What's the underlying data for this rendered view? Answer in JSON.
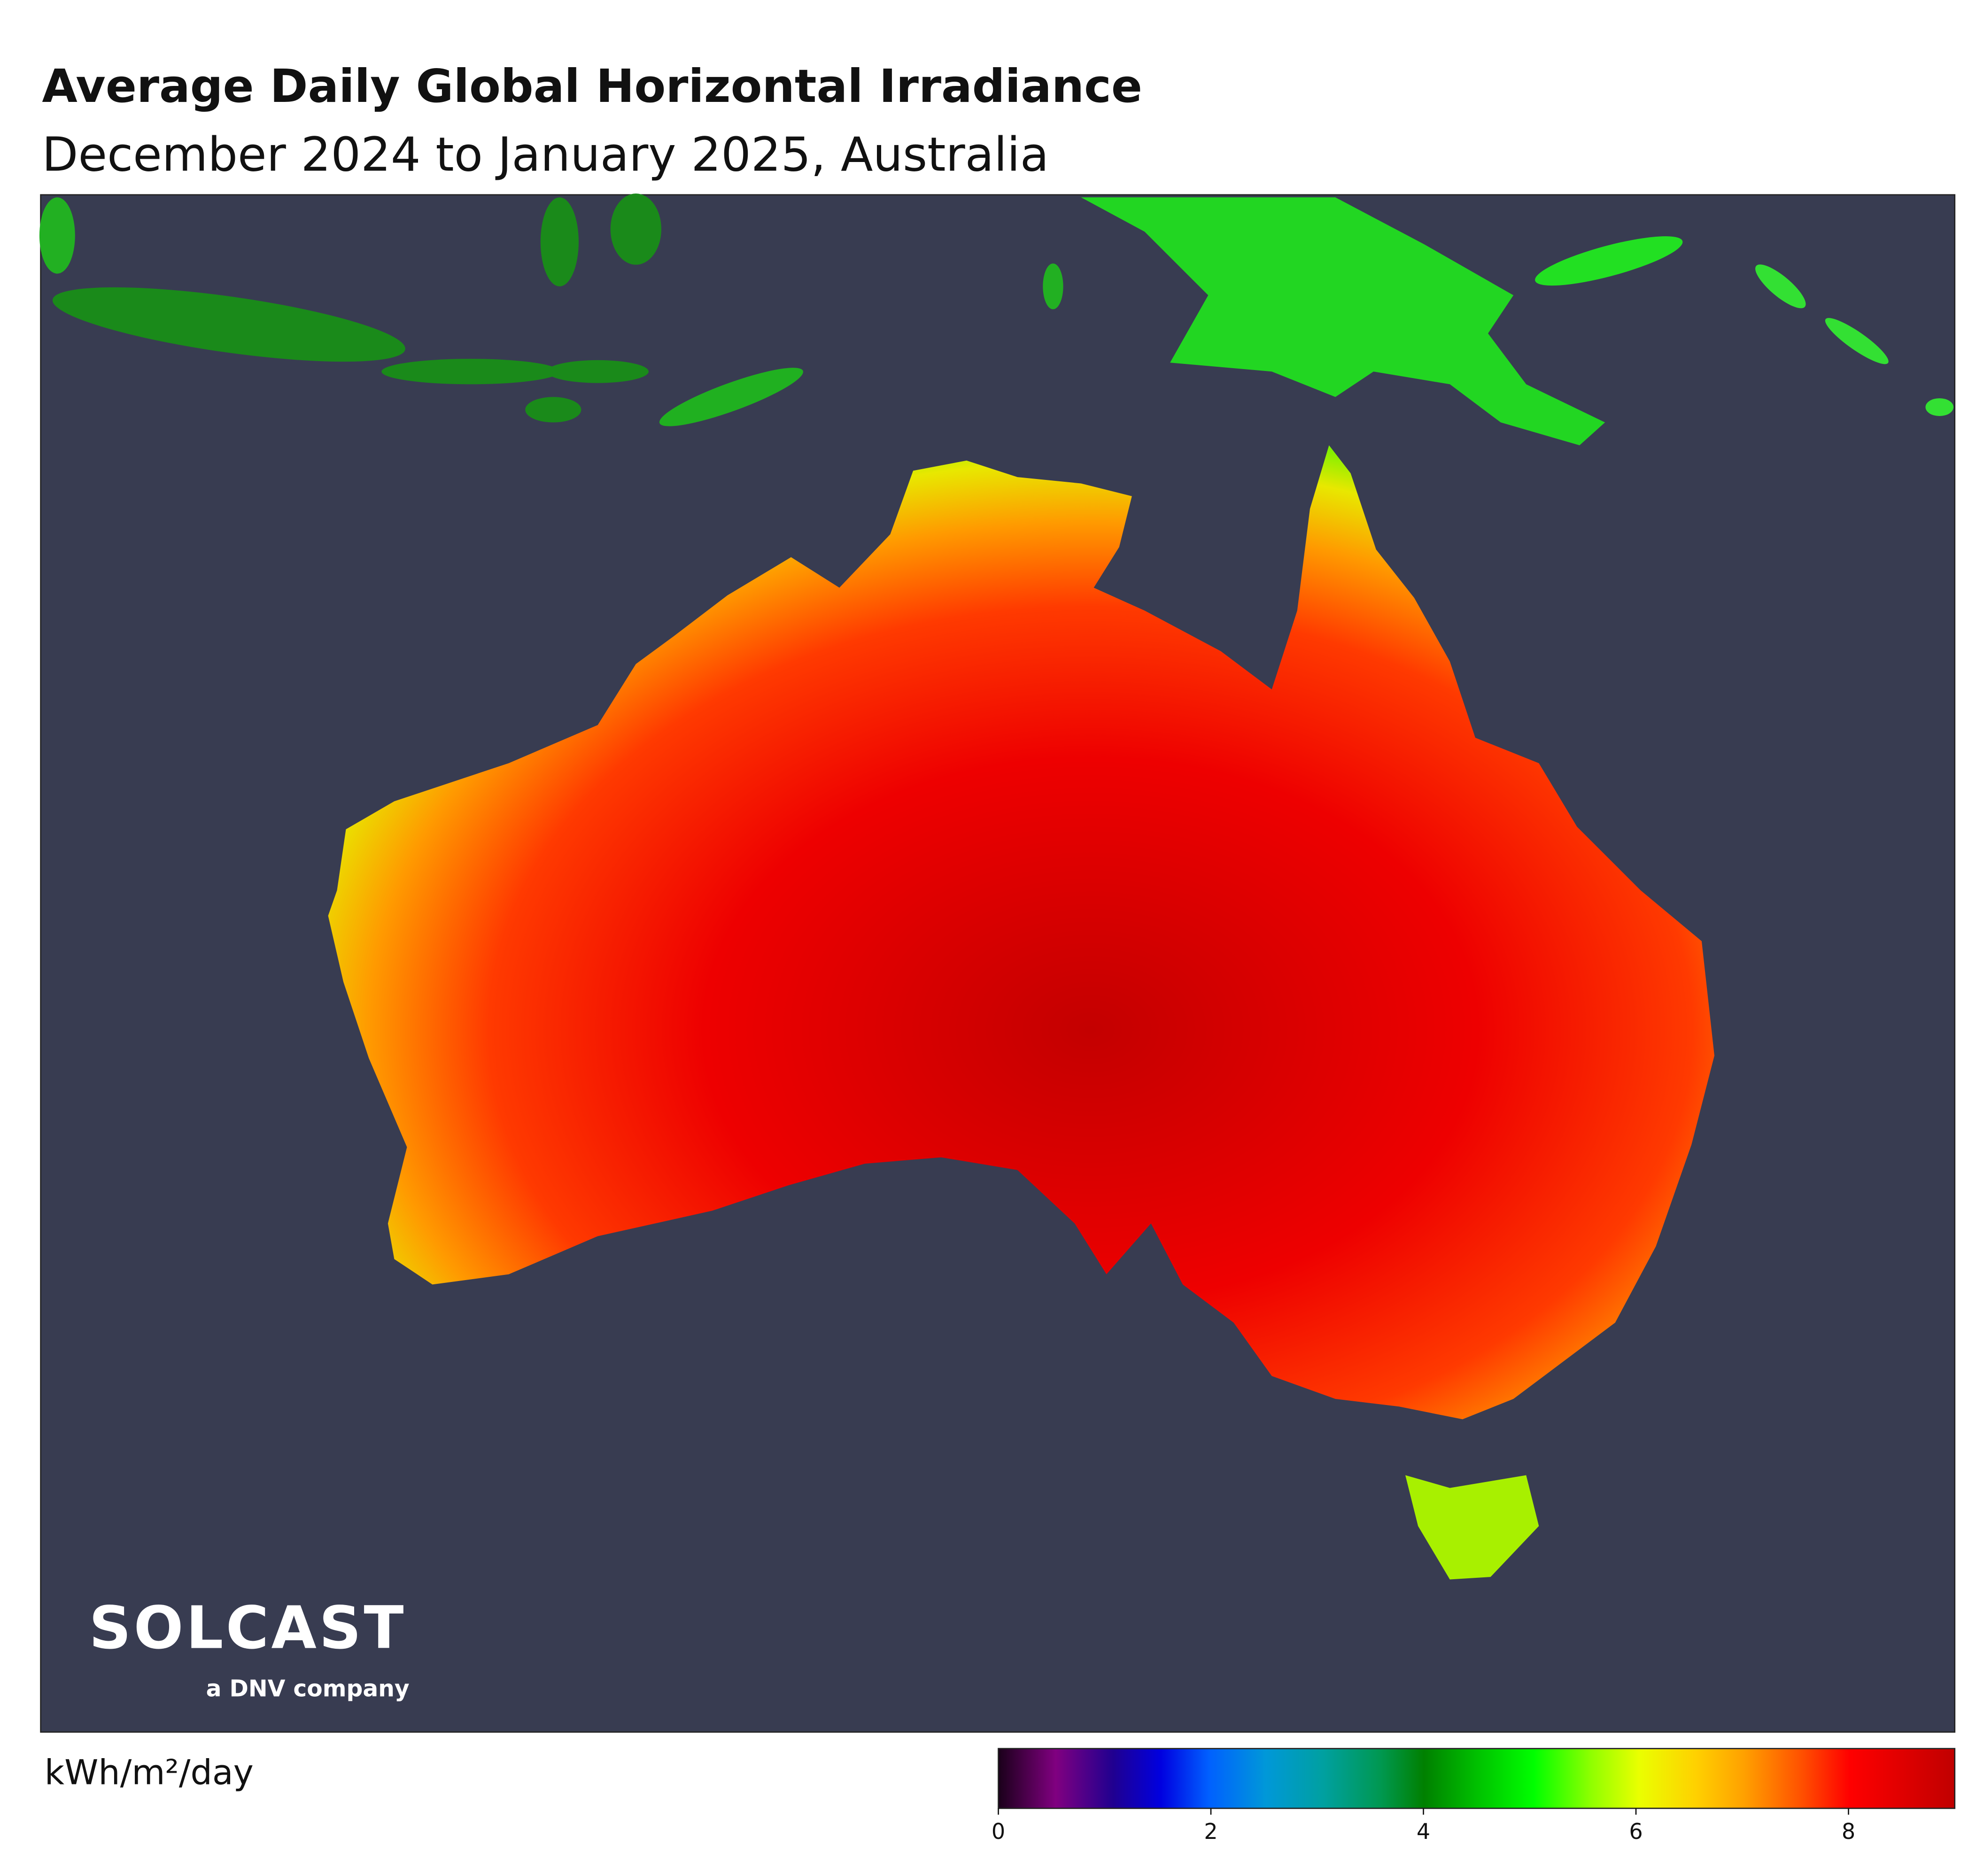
{
  "header": {
    "title": "Average Daily Global Horizontal Irradiance",
    "subtitle": "December 2024 to January 2025, Australia"
  },
  "logo": {
    "name": "SOLCAST",
    "tagline": "a DNV company"
  },
  "colorbar": {
    "label": "kWh/m²/day",
    "lim": [
      0,
      9
    ],
    "ticks": [
      0,
      2,
      4,
      6,
      8
    ]
  }
}
